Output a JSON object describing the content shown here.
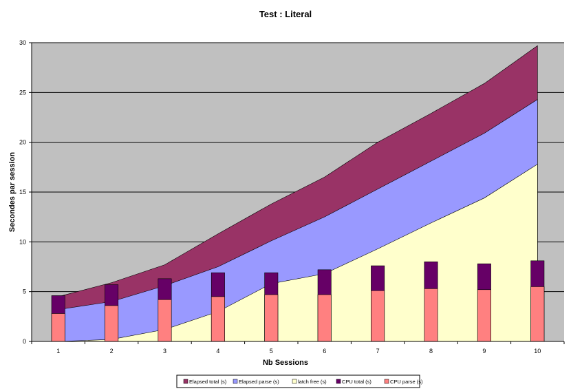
{
  "chart_data": {
    "type": "area",
    "title": "Test : Literal",
    "xlabel": "Nb Sessions",
    "ylabel": "Secondes par session",
    "categories": [
      "1",
      "2",
      "3",
      "4",
      "5",
      "6",
      "7",
      "8",
      "9",
      "10"
    ],
    "ylim": [
      0,
      30
    ],
    "yticks": [
      0,
      5,
      10,
      15,
      20,
      25,
      30
    ],
    "grid": true,
    "legend_position": "bottom",
    "area_series": [
      {
        "name": "Elapsed total (s)",
        "color": "#993366",
        "values": [
          4.5,
          5.9,
          7.7,
          10.8,
          13.8,
          16.5,
          20.0,
          22.9,
          25.9,
          29.7
        ]
      },
      {
        "name": "Elapsed parse (s)",
        "color": "#9999ff",
        "values": [
          3.2,
          4.0,
          5.6,
          7.5,
          10.1,
          12.5,
          15.3,
          18.1,
          20.9,
          24.3
        ]
      },
      {
        "name": "latch free (s)",
        "color": "#ffffcc",
        "values": [
          0.0,
          0.2,
          1.2,
          3.0,
          5.8,
          6.8,
          9.3,
          11.9,
          14.4,
          17.8
        ]
      }
    ],
    "bar_series": [
      {
        "name": "CPU  total (s)",
        "color": "#660066",
        "values": [
          4.6,
          5.7,
          6.3,
          6.9,
          6.9,
          7.2,
          7.6,
          8.0,
          7.8,
          8.1
        ]
      },
      {
        "name": "CPU parse (s)",
        "color": "#ff8080",
        "values": [
          2.8,
          3.6,
          4.2,
          4.5,
          4.7,
          4.7,
          5.1,
          5.3,
          5.2,
          5.5
        ]
      }
    ],
    "plot_background": "#c0c0c0",
    "legend_order": [
      "Elapsed total (s)",
      "Elapsed parse (s)",
      "latch free (s)",
      "CPU  total (s)",
      "CPU parse (s)"
    ]
  }
}
